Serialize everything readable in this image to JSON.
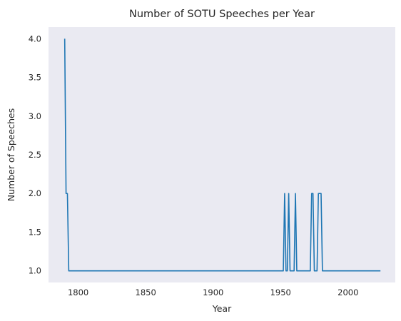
{
  "chart_data": {
    "type": "line",
    "title": "Number of SOTU Speeches per Year",
    "xlabel": "Year",
    "ylabel": "Number of Speeches",
    "xlim": [
      1778,
      2035
    ],
    "ylim": [
      0.85,
      4.15
    ],
    "xticks": [
      1800,
      1850,
      1900,
      1950,
      2000
    ],
    "yticks": [
      1.0,
      1.5,
      2.0,
      2.5,
      3.0,
      3.5,
      4.0
    ],
    "ytick_labels": [
      "1.0",
      "1.5",
      "2.0",
      "2.5",
      "3.0",
      "3.5",
      "4.0"
    ],
    "grid": false,
    "background_color": "#eaeaf2",
    "series": [
      {
        "color": "#1f77b4",
        "x": [
          1790,
          1791,
          1792,
          1793,
          1794,
          1950,
          1952,
          1953,
          1954,
          1955,
          1956,
          1957,
          1960,
          1961,
          1962,
          1972,
          1973,
          1974,
          1975,
          1977,
          1978,
          1979,
          1980,
          1981,
          1982,
          2024
        ],
        "y": [
          4,
          2,
          2,
          1,
          1,
          1,
          1,
          2,
          1,
          1,
          2,
          1,
          1,
          2,
          1,
          1,
          2,
          2,
          1,
          1,
          2,
          2,
          2,
          1,
          1,
          1
        ]
      }
    ]
  }
}
